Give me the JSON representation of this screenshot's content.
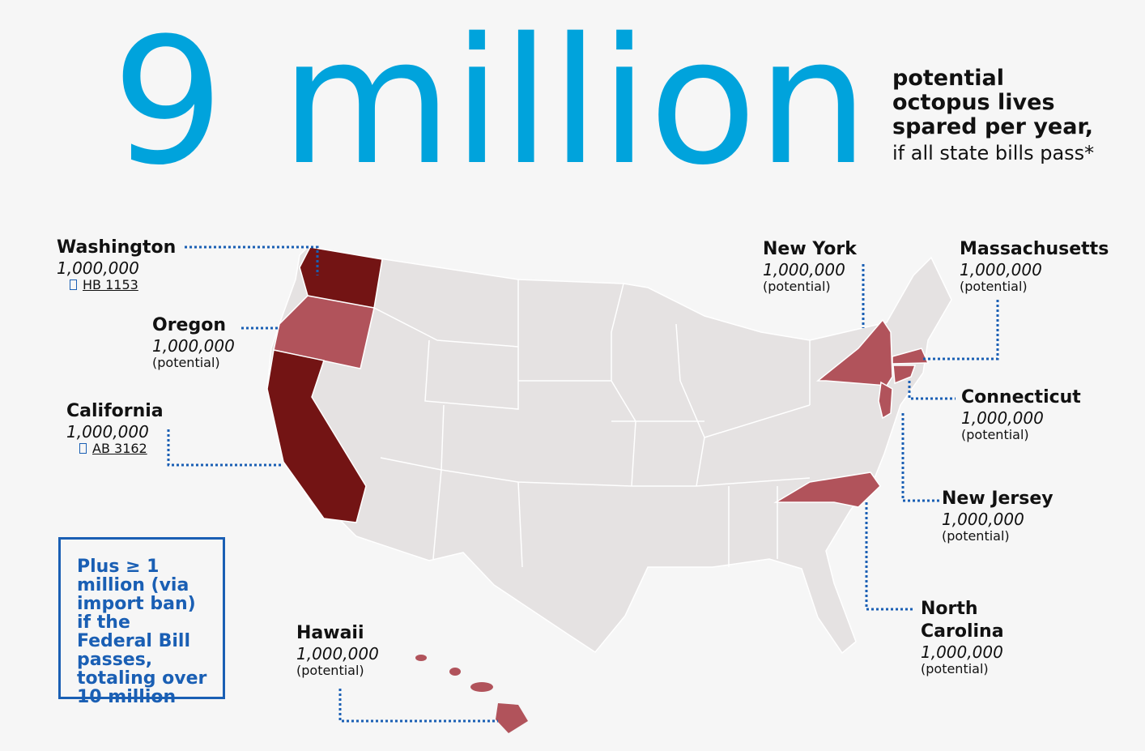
{
  "headline": {
    "number": "9 million",
    "lines": [
      "potential",
      "octopus lives",
      "spared per year,"
    ],
    "condition": "if all state bills pass*"
  },
  "states": [
    {
      "name": "Washington",
      "count": "1,000,000",
      "note": "HB 1153"
    },
    {
      "name": "Oregon",
      "count": "1,000,000",
      "note": "(potential)"
    },
    {
      "name": "California",
      "count": "1,000,000",
      "note": "AB 3162"
    },
    {
      "name": "Hawaii",
      "count": "1,000,000",
      "note": "(potential)"
    },
    {
      "name": "New York",
      "count": "1,000,000",
      "note": "(potential)"
    },
    {
      "name": "Massachusetts",
      "count": "1,000,000",
      "note": "(potential)"
    },
    {
      "name": "Connecticut",
      "count": "1,000,000",
      "note": "(potential)"
    },
    {
      "name": "New Jersey",
      "count": "1,000,000",
      "note": "(potential)"
    },
    {
      "name": "North Carolina",
      "count": "1,000,000",
      "note": "(potential)"
    }
  ],
  "callout": "Plus ≥ 1 million (via import ban) if the Federal Bill passes, totaling over 10 million"
}
